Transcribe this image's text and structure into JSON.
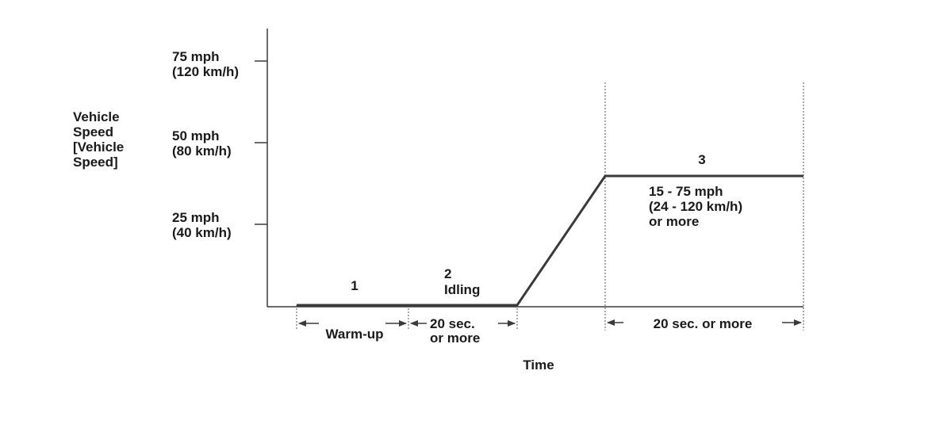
{
  "y_axis": {
    "label_lines": [
      "Vehicle",
      "Speed",
      "[Vehicle",
      "Speed]"
    ],
    "ticks": [
      {
        "speed_mph": 75,
        "line1": "75 mph",
        "line2": "(120 km/h)"
      },
      {
        "speed_mph": 50,
        "line1": "50 mph",
        "line2": "(80 km/h)"
      },
      {
        "speed_mph": 25,
        "line1": "25 mph",
        "line2": "(40 km/h)"
      }
    ]
  },
  "x_axis": {
    "label": "Time"
  },
  "phases": {
    "p1": {
      "number": "1",
      "duration": "Warm-up"
    },
    "p2": {
      "number": "2",
      "name": "Idling",
      "duration_line1": "20 sec.",
      "duration_line2": "or more"
    },
    "p3": {
      "number": "3",
      "speed_line1": "15 - 75 mph",
      "speed_line2": "(24 - 120 km/h)",
      "speed_line3": "or more",
      "duration": "20 sec. or more"
    }
  },
  "colors": {
    "line": "#3a3a3a",
    "text": "#1a1a1a"
  }
}
